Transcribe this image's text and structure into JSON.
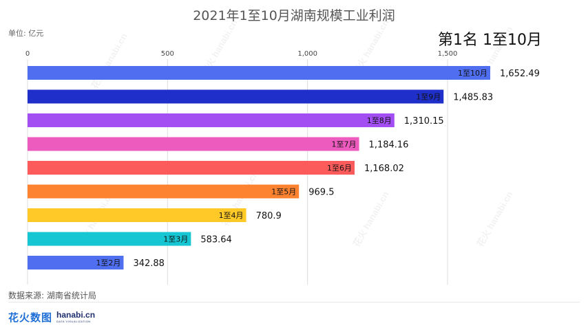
{
  "title": "2021年1至10月湖南规模工业利润",
  "unit": "单位: 亿元",
  "current_rank_label": "第1名 1至10月",
  "source": "数据来源: 湖南省统计局",
  "logo": {
    "cn": "花火数图",
    "en": "hanabi.cn",
    "sub": "DATA VISUALIZATION"
  },
  "watermark": "花火 hanabi.cn",
  "chart_data": {
    "type": "bar",
    "orientation": "horizontal",
    "title": "2021年1至10月湖南规模工业利润",
    "ylabel": "单位: 亿元",
    "xlim": [
      0,
      1800
    ],
    "x_ticks": [
      0,
      500,
      1000,
      1500
    ],
    "x_tick_labels": [
      "0",
      "500",
      "1,000",
      "1,500"
    ],
    "grid": true,
    "categories": [
      "1至10月",
      "1至9月",
      "1至8月",
      "1至7月",
      "1至6月",
      "1至5月",
      "1至4月",
      "1至3月",
      "1至2月"
    ],
    "values": [
      1652.49,
      1485.83,
      1310.15,
      1184.16,
      1168.02,
      969.5,
      780.9,
      583.64,
      342.88
    ],
    "value_labels": [
      "1,652.49",
      "1,485.83",
      "1,310.15",
      "1,184.16",
      "1,168.02",
      "969.5",
      "780.9",
      "583.64",
      "342.88"
    ],
    "colors": [
      "#4f6ff0",
      "#1f2fc9",
      "#a24ef2",
      "#ee5bbf",
      "#fb5b5b",
      "#fd8330",
      "#ffc928",
      "#16c7d3",
      "#4f6ff0"
    ]
  }
}
